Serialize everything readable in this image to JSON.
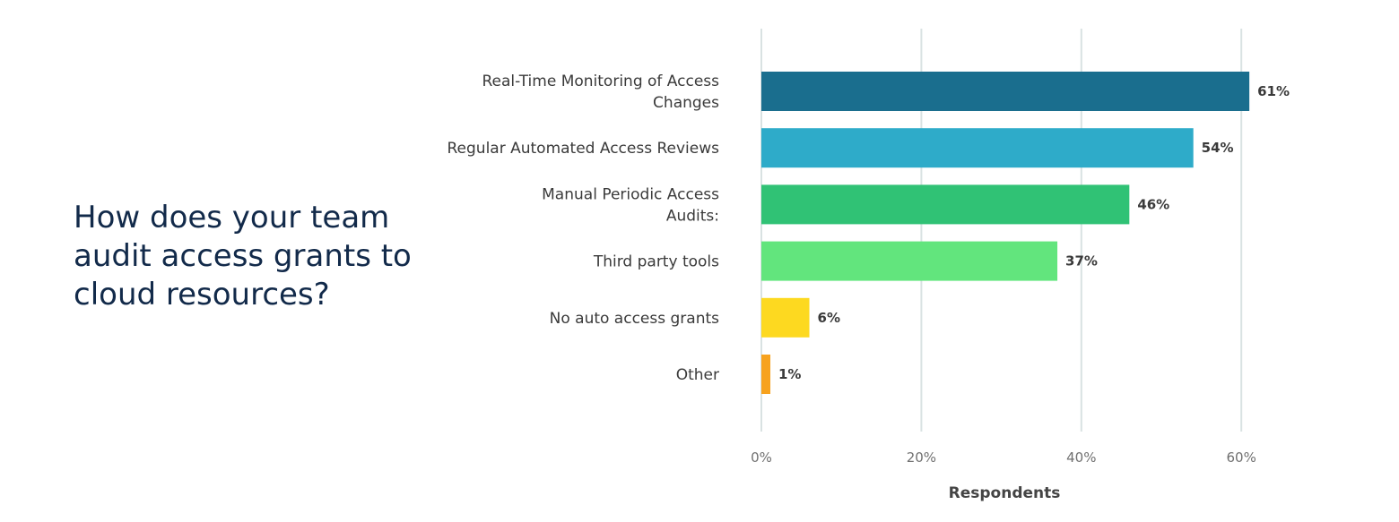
{
  "question": "How does your team audit access grants to cloud resources?",
  "chart_data": {
    "type": "bar",
    "orientation": "horizontal",
    "categories": [
      [
        "Real-Time Monitoring of Access",
        "Changes"
      ],
      [
        "Regular Automated Access Reviews"
      ],
      [
        "Manual Periodic Access",
        "Audits:"
      ],
      [
        "Third party tools"
      ],
      [
        "No auto access grants"
      ],
      [
        "Other"
      ]
    ],
    "values": [
      61,
      54,
      46,
      37,
      6,
      1
    ],
    "value_labels": [
      "61%",
      "54%",
      "46%",
      "37%",
      "6%",
      "1%"
    ],
    "colors": [
      "#1a6e8e",
      "#2eabc9",
      "#30c275",
      "#62e57d",
      "#fdd920",
      "#f7a21e"
    ],
    "xlabel": "Respondents",
    "ticks": [
      0,
      20,
      40,
      60
    ],
    "tick_labels": [
      "0%",
      "20%",
      "40%",
      "60%"
    ],
    "xlim": [
      0,
      60
    ],
    "grid": true,
    "legend": "none"
  }
}
